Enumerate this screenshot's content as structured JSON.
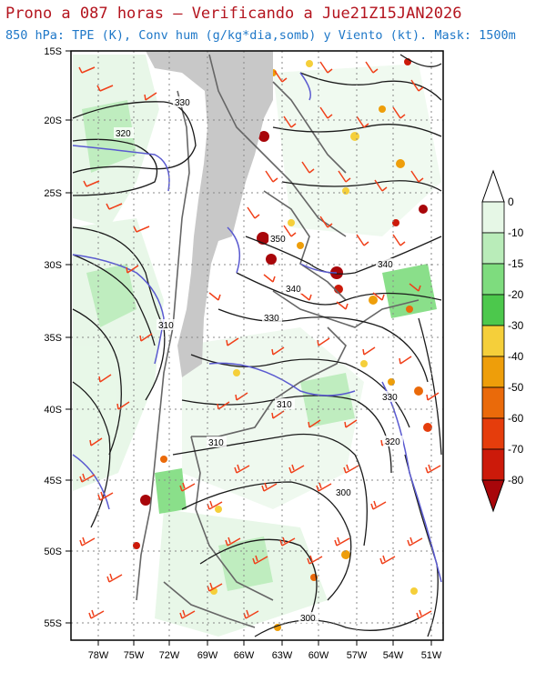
{
  "header": {
    "title": "Prono a 087 horas — Verificando a Jue21Z15JAN2026",
    "subtitle": "850 hPa: TPE (K), Conv hum (g/kg*dia,somb) y Viento (kt). Mask: 1500m"
  },
  "map": {
    "lat_labels": [
      "15S",
      "20S",
      "25S",
      "30S",
      "35S",
      "40S",
      "45S",
      "50S",
      "55S"
    ],
    "lon_labels": [
      "78W",
      "75W",
      "72W",
      "69W",
      "66W",
      "63W",
      "60W",
      "57W",
      "54W",
      "51W"
    ],
    "contour_labels": [
      "330",
      "320",
      "350",
      "340",
      "340",
      "330",
      "310",
      "310",
      "330",
      "310",
      "320",
      "300",
      "300"
    ]
  },
  "colorbar": {
    "labels": [
      "0",
      "-10",
      "-15",
      "-20",
      "-30",
      "-40",
      "-50",
      "-60",
      "-70",
      "-80"
    ],
    "colors": [
      "#ffffff",
      "#e6f7e6",
      "#b9ecb9",
      "#7edc7e",
      "#4cc84c",
      "#f5cf3a",
      "#ee9e0a",
      "#ea6a0a",
      "#e53d0c",
      "#cc1a0a",
      "#a8060a",
      "#820006"
    ]
  },
  "colors": {
    "title": "#b4141e",
    "subtitle": "#1f78c8",
    "contour": "#1a1a1a",
    "contour_blue": "#5a5ad0",
    "wind_barb": "#f0401a",
    "border": "#666666",
    "mask": "#c8c8c8"
  }
}
